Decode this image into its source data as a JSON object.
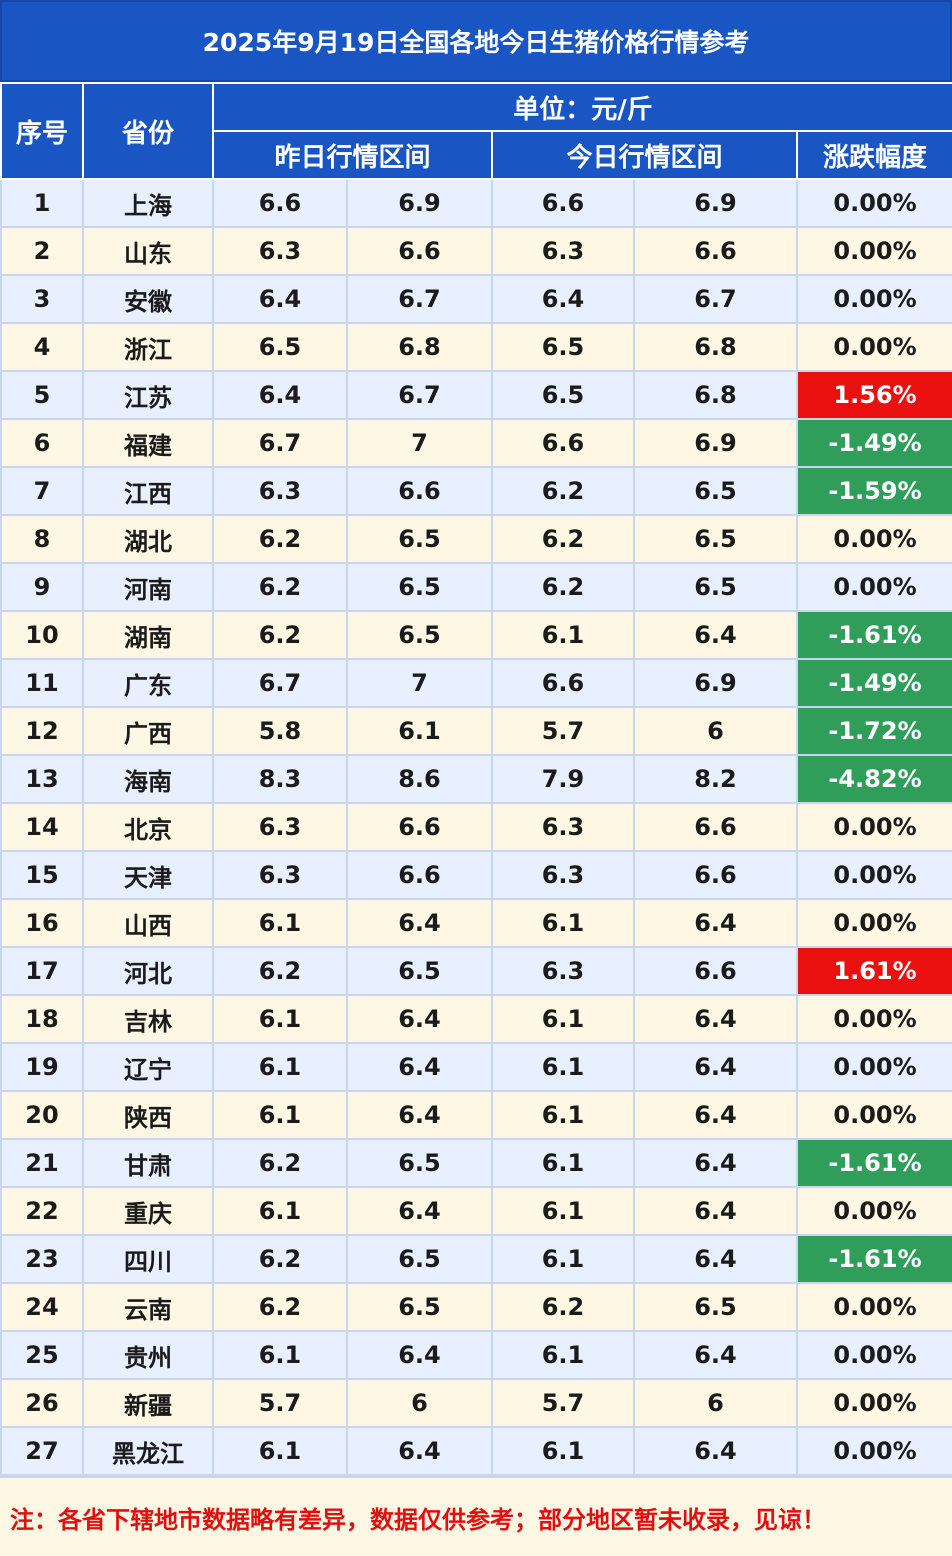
{
  "title": "2025年9月19日全国各地今日生猪价格行情参考",
  "header": {
    "seq": "序号",
    "province": "省份",
    "unit": "单位：元/斤",
    "yesterday": "昨日行情区间",
    "today": "今日行情区间",
    "change": "涨跌幅度"
  },
  "rows": [
    {
      "seq": "1",
      "province": "上海",
      "y_low": "6.6",
      "y_high": "6.9",
      "t_low": "6.6",
      "t_high": "6.9",
      "change": "0.00%",
      "trend": "flat"
    },
    {
      "seq": "2",
      "province": "山东",
      "y_low": "6.3",
      "y_high": "6.6",
      "t_low": "6.3",
      "t_high": "6.6",
      "change": "0.00%",
      "trend": "flat"
    },
    {
      "seq": "3",
      "province": "安徽",
      "y_low": "6.4",
      "y_high": "6.7",
      "t_low": "6.4",
      "t_high": "6.7",
      "change": "0.00%",
      "trend": "flat"
    },
    {
      "seq": "4",
      "province": "浙江",
      "y_low": "6.5",
      "y_high": "6.8",
      "t_low": "6.5",
      "t_high": "6.8",
      "change": "0.00%",
      "trend": "flat"
    },
    {
      "seq": "5",
      "province": "江苏",
      "y_low": "6.4",
      "y_high": "6.7",
      "t_low": "6.5",
      "t_high": "6.8",
      "change": "1.56%",
      "trend": "up"
    },
    {
      "seq": "6",
      "province": "福建",
      "y_low": "6.7",
      "y_high": "7",
      "t_low": "6.6",
      "t_high": "6.9",
      "change": "-1.49%",
      "trend": "down"
    },
    {
      "seq": "7",
      "province": "江西",
      "y_low": "6.3",
      "y_high": "6.6",
      "t_low": "6.2",
      "t_high": "6.5",
      "change": "-1.59%",
      "trend": "down"
    },
    {
      "seq": "8",
      "province": "湖北",
      "y_low": "6.2",
      "y_high": "6.5",
      "t_low": "6.2",
      "t_high": "6.5",
      "change": "0.00%",
      "trend": "flat"
    },
    {
      "seq": "9",
      "province": "河南",
      "y_low": "6.2",
      "y_high": "6.5",
      "t_low": "6.2",
      "t_high": "6.5",
      "change": "0.00%",
      "trend": "flat"
    },
    {
      "seq": "10",
      "province": "湖南",
      "y_low": "6.2",
      "y_high": "6.5",
      "t_low": "6.1",
      "t_high": "6.4",
      "change": "-1.61%",
      "trend": "down"
    },
    {
      "seq": "11",
      "province": "广东",
      "y_low": "6.7",
      "y_high": "7",
      "t_low": "6.6",
      "t_high": "6.9",
      "change": "-1.49%",
      "trend": "down"
    },
    {
      "seq": "12",
      "province": "广西",
      "y_low": "5.8",
      "y_high": "6.1",
      "t_low": "5.7",
      "t_high": "6",
      "change": "-1.72%",
      "trend": "down"
    },
    {
      "seq": "13",
      "province": "海南",
      "y_low": "8.3",
      "y_high": "8.6",
      "t_low": "7.9",
      "t_high": "8.2",
      "change": "-4.82%",
      "trend": "down"
    },
    {
      "seq": "14",
      "province": "北京",
      "y_low": "6.3",
      "y_high": "6.6",
      "t_low": "6.3",
      "t_high": "6.6",
      "change": "0.00%",
      "trend": "flat"
    },
    {
      "seq": "15",
      "province": "天津",
      "y_low": "6.3",
      "y_high": "6.6",
      "t_low": "6.3",
      "t_high": "6.6",
      "change": "0.00%",
      "trend": "flat"
    },
    {
      "seq": "16",
      "province": "山西",
      "y_low": "6.1",
      "y_high": "6.4",
      "t_low": "6.1",
      "t_high": "6.4",
      "change": "0.00%",
      "trend": "flat"
    },
    {
      "seq": "17",
      "province": "河北",
      "y_low": "6.2",
      "y_high": "6.5",
      "t_low": "6.3",
      "t_high": "6.6",
      "change": "1.61%",
      "trend": "up"
    },
    {
      "seq": "18",
      "province": "吉林",
      "y_low": "6.1",
      "y_high": "6.4",
      "t_low": "6.1",
      "t_high": "6.4",
      "change": "0.00%",
      "trend": "flat"
    },
    {
      "seq": "19",
      "province": "辽宁",
      "y_low": "6.1",
      "y_high": "6.4",
      "t_low": "6.1",
      "t_high": "6.4",
      "change": "0.00%",
      "trend": "flat"
    },
    {
      "seq": "20",
      "province": "陕西",
      "y_low": "6.1",
      "y_high": "6.4",
      "t_low": "6.1",
      "t_high": "6.4",
      "change": "0.00%",
      "trend": "flat"
    },
    {
      "seq": "21",
      "province": "甘肃",
      "y_low": "6.2",
      "y_high": "6.5",
      "t_low": "6.1",
      "t_high": "6.4",
      "change": "-1.61%",
      "trend": "down"
    },
    {
      "seq": "22",
      "province": "重庆",
      "y_low": "6.1",
      "y_high": "6.4",
      "t_low": "6.1",
      "t_high": "6.4",
      "change": "0.00%",
      "trend": "flat"
    },
    {
      "seq": "23",
      "province": "四川",
      "y_low": "6.2",
      "y_high": "6.5",
      "t_low": "6.1",
      "t_high": "6.4",
      "change": "-1.61%",
      "trend": "down"
    },
    {
      "seq": "24",
      "province": "云南",
      "y_low": "6.2",
      "y_high": "6.5",
      "t_low": "6.2",
      "t_high": "6.5",
      "change": "0.00%",
      "trend": "flat"
    },
    {
      "seq": "25",
      "province": "贵州",
      "y_low": "6.1",
      "y_high": "6.4",
      "t_low": "6.1",
      "t_high": "6.4",
      "change": "0.00%",
      "trend": "flat"
    },
    {
      "seq": "26",
      "province": "新疆",
      "y_low": "5.7",
      "y_high": "6",
      "t_low": "5.7",
      "t_high": "6",
      "change": "0.00%",
      "trend": "flat"
    },
    {
      "seq": "27",
      "province": "黑龙江",
      "y_low": "6.1",
      "y_high": "6.4",
      "t_low": "6.1",
      "t_high": "6.4",
      "change": "0.00%",
      "trend": "flat"
    }
  ],
  "note": "注：各省下辖地市数据略有差异，数据仅供参考；部分地区暂未收录，见谅！",
  "colors": {
    "header_bg": "#1a55c4",
    "up": "#ea1010",
    "down": "#2f9e5a",
    "row_blue": "#e8efff",
    "row_cream": "#fdf7e3",
    "note_text": "#e01010"
  }
}
